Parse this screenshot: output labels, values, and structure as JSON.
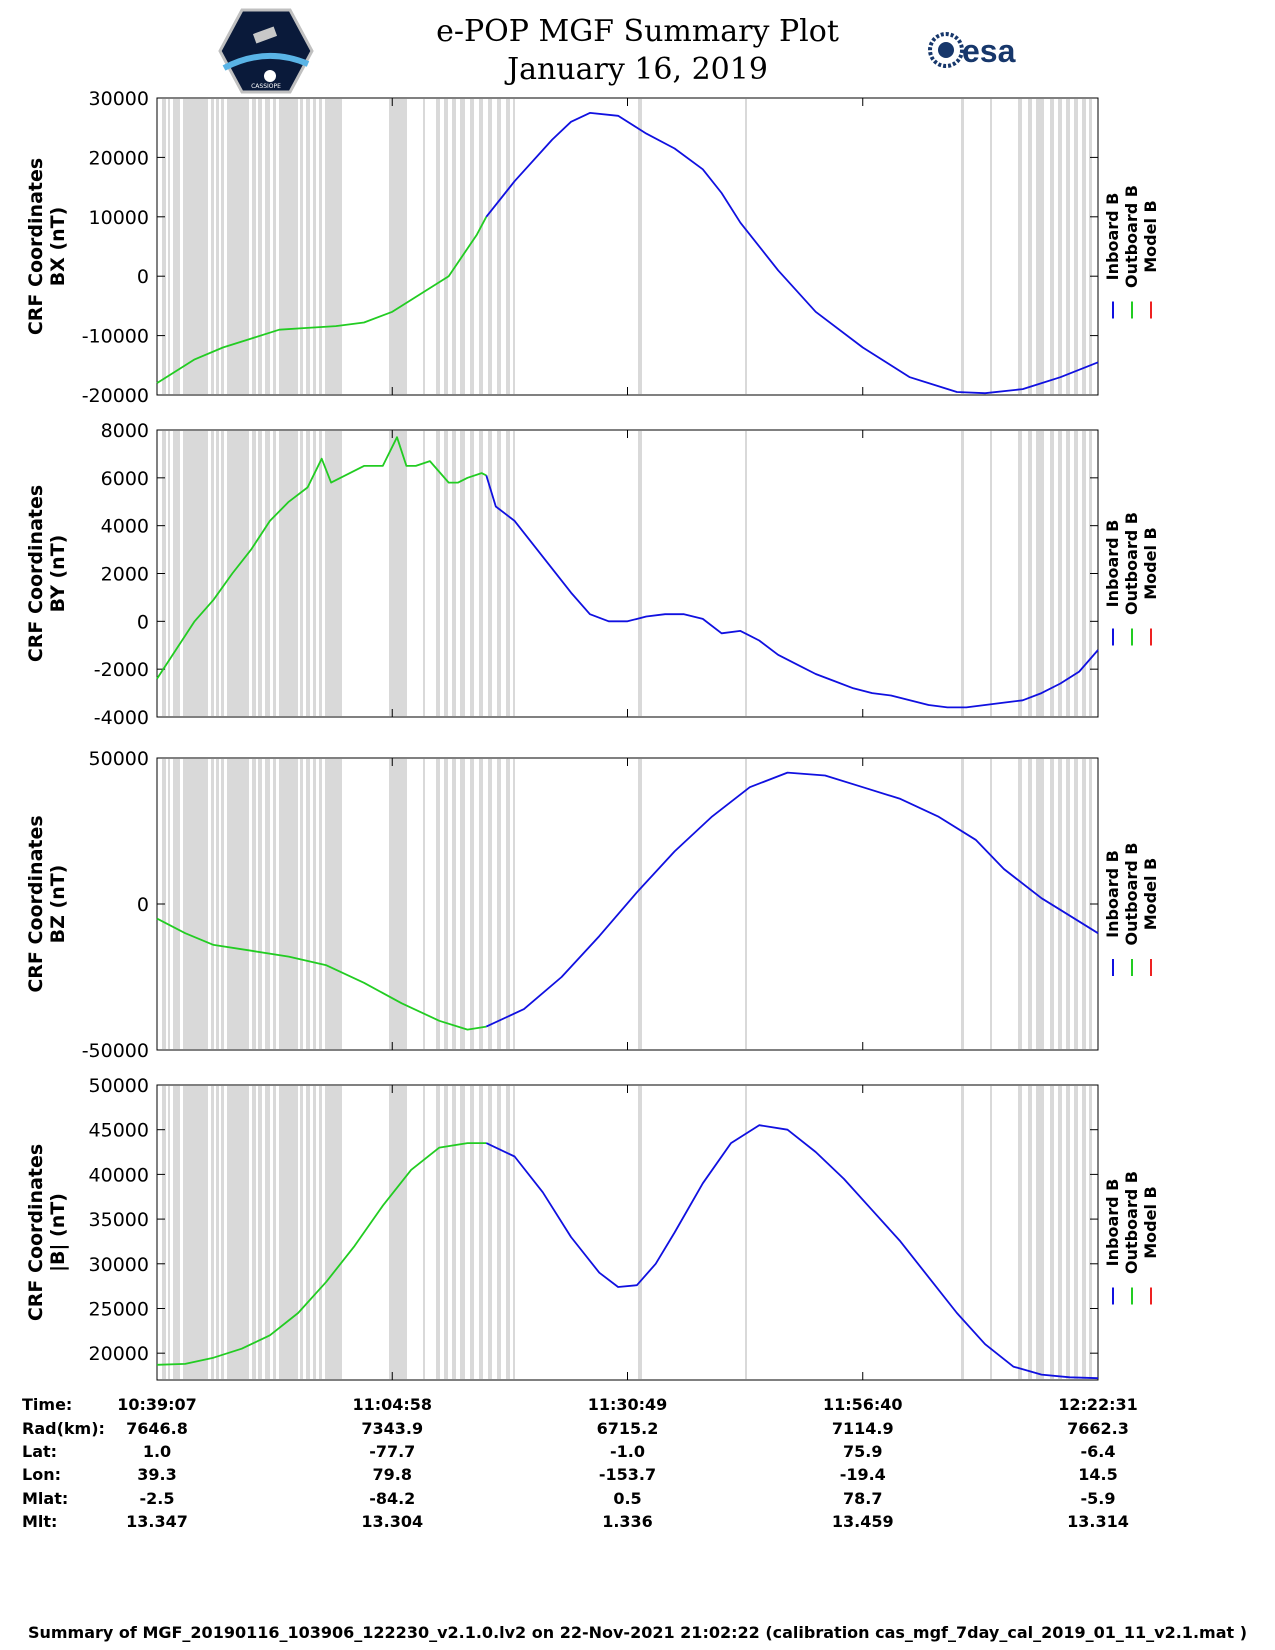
{
  "header": {
    "title": "e-POP MGF Summary Plot",
    "date": "January 16, 2019",
    "left_logo_text": "CASSIOPE",
    "right_logo_text": "esa"
  },
  "colors": {
    "inboard": "#1010e0",
    "outboard": "#22cc22",
    "model": "#ee2222",
    "gap": "#d9d9d9"
  },
  "chart_data": [
    {
      "type": "line",
      "ylabel_line1": "CRF Coordinates",
      "ylabel_line2": "BX (nT)",
      "ylim": [
        -20000,
        30000
      ],
      "yticks": [
        -20000,
        -10000,
        0,
        10000,
        20000,
        30000
      ],
      "legend": [
        "Inboard B",
        "Outboard B",
        "Model B"
      ],
      "series": [
        {
          "name": "Outboard B",
          "x": [
            0,
            2,
            4,
            7,
            10,
            13,
            16,
            19,
            22,
            25,
            28,
            31,
            34,
            35
          ],
          "y": [
            -18000,
            -16000,
            -14000,
            -12000,
            -10500,
            -9000,
            -8700,
            -8400,
            -7800,
            -6000,
            -3000,
            0,
            7000,
            10000
          ]
        },
        {
          "name": "Inboard B",
          "x": [
            35,
            38,
            42,
            44,
            46,
            49,
            52,
            55,
            58,
            60,
            62,
            66,
            70,
            75,
            80,
            85,
            88,
            92,
            96,
            100
          ],
          "y": [
            10000,
            16000,
            23000,
            26000,
            27500,
            27000,
            24000,
            21500,
            18000,
            14000,
            9000,
            1000,
            -6000,
            -12000,
            -17000,
            -19500,
            -19700,
            -19000,
            -17000,
            -14500
          ]
        },
        {
          "name": "Model B",
          "x": [],
          "y": []
        }
      ]
    },
    {
      "type": "line",
      "ylabel_line1": "CRF Coordinates",
      "ylabel_line2": "BY (nT)",
      "ylim": [
        -4000,
        8000
      ],
      "yticks": [
        -4000,
        -2000,
        0,
        2000,
        4000,
        6000,
        8000
      ],
      "legend": [
        "Inboard B",
        "Outboard B",
        "Model B"
      ],
      "series": [
        {
          "name": "Outboard B",
          "x": [
            0,
            2,
            4,
            6,
            8,
            10,
            12,
            14,
            16,
            17.5,
            18.5,
            20,
            22,
            24,
            25.5,
            26.5,
            27.5,
            29,
            31,
            32,
            33,
            34.5,
            35
          ],
          "y": [
            -2400,
            -1200,
            0,
            900,
            2000,
            3000,
            4200,
            5000,
            5600,
            6800,
            5800,
            6100,
            6500,
            6500,
            7700,
            6500,
            6500,
            6700,
            5800,
            5800,
            6000,
            6200,
            6100
          ]
        },
        {
          "name": "Inboard B",
          "x": [
            35,
            36,
            38,
            40,
            42,
            44,
            46,
            48,
            50,
            52,
            54,
            56,
            58,
            60,
            62,
            64,
            66,
            68,
            70,
            72,
            74,
            76,
            78,
            80,
            82,
            84,
            86,
            88,
            90,
            92,
            94,
            96,
            98,
            100
          ],
          "y": [
            6100,
            4800,
            4200,
            3200,
            2200,
            1200,
            300,
            0,
            0,
            200,
            300,
            300,
            100,
            -500,
            -400,
            -800,
            -1400,
            -1800,
            -2200,
            -2500,
            -2800,
            -3000,
            -3100,
            -3300,
            -3500,
            -3600,
            -3600,
            -3500,
            -3400,
            -3300,
            -3000,
            -2600,
            -2100,
            -1200
          ]
        },
        {
          "name": "Model B",
          "x": [],
          "y": []
        }
      ]
    },
    {
      "type": "line",
      "ylabel_line1": "CRF Coordinates",
      "ylabel_line2": "BZ (nT)",
      "ylim": [
        -50000,
        50000
      ],
      "yticks": [
        -50000,
        0,
        50000
      ],
      "legend": [
        "Inboard B",
        "Outboard B",
        "Model B"
      ],
      "series": [
        {
          "name": "Outboard B",
          "x": [
            0,
            3,
            6,
            10,
            14,
            18,
            22,
            26,
            30,
            33,
            35
          ],
          "y": [
            -5000,
            -10000,
            -14000,
            -16000,
            -18000,
            -21000,
            -27000,
            -34000,
            -40000,
            -43000,
            -42000
          ]
        },
        {
          "name": "Inboard B",
          "x": [
            35,
            39,
            43,
            47,
            51,
            55,
            59,
            63,
            67,
            71,
            75,
            79,
            83,
            87,
            90,
            94,
            97,
            100
          ],
          "y": [
            -42000,
            -36000,
            -25000,
            -11000,
            4000,
            18000,
            30000,
            40000,
            45000,
            44000,
            40000,
            36000,
            30000,
            22000,
            12000,
            2000,
            -4000,
            -10000
          ]
        },
        {
          "name": "Model B",
          "x": [],
          "y": []
        }
      ]
    },
    {
      "type": "line",
      "ylabel_line1": "CRF Coordinates",
      "ylabel_line2": "|B| (nT)",
      "ylim": [
        17000,
        50000
      ],
      "yticks": [
        20000,
        25000,
        30000,
        35000,
        40000,
        45000,
        50000
      ],
      "legend": [
        "Inboard B",
        "Outboard B",
        "Model B"
      ],
      "series": [
        {
          "name": "Outboard B",
          "x": [
            0,
            3,
            6,
            9,
            12,
            15,
            18,
            21,
            24,
            27,
            30,
            33,
            35
          ],
          "y": [
            18700,
            18800,
            19500,
            20500,
            22000,
            24500,
            28000,
            32000,
            36500,
            40500,
            43000,
            43500,
            43500
          ]
        },
        {
          "name": "Inboard B",
          "x": [
            35,
            38,
            41,
            44,
            47,
            49,
            51,
            53,
            55,
            58,
            61,
            64,
            67,
            70,
            73,
            76,
            79,
            82,
            85,
            88,
            91,
            94,
            97,
            100
          ],
          "y": [
            43500,
            42000,
            38000,
            33000,
            29000,
            27400,
            27600,
            30000,
            33500,
            39000,
            43500,
            45500,
            45000,
            42500,
            39500,
            36000,
            32500,
            28500,
            24500,
            21000,
            18500,
            17600,
            17300,
            17200
          ]
        },
        {
          "name": "Model B",
          "x": [],
          "y": []
        }
      ]
    }
  ],
  "x_axis": {
    "row_labels": [
      "Time:",
      "Rad(km):",
      "Lat:",
      "Lon:",
      "Mlat:",
      "Mlt:"
    ],
    "columns": [
      [
        "10:39:07",
        "7646.8",
        "1.0",
        "39.3",
        "-2.5",
        "13.347"
      ],
      [
        "11:04:58",
        "7343.9",
        "-77.7",
        "79.8",
        "-84.2",
        "13.304"
      ],
      [
        "11:30:49",
        "6715.2",
        "-1.0",
        "-153.7",
        "0.5",
        "1.336"
      ],
      [
        "11:56:40",
        "7114.9",
        "75.9",
        "-19.4",
        "78.7",
        "13.459"
      ],
      [
        "12:22:31",
        "7662.3",
        "-6.4",
        "14.5",
        "-5.9",
        "13.314"
      ]
    ]
  },
  "footer": "Summary of MGF_20190116_103906_122230_v2.1.0.lv2 on 22-Nov-2021 21:02:22 (calibration cas_mgf_7day_cal_2019_01_11_v2.1.mat )"
}
